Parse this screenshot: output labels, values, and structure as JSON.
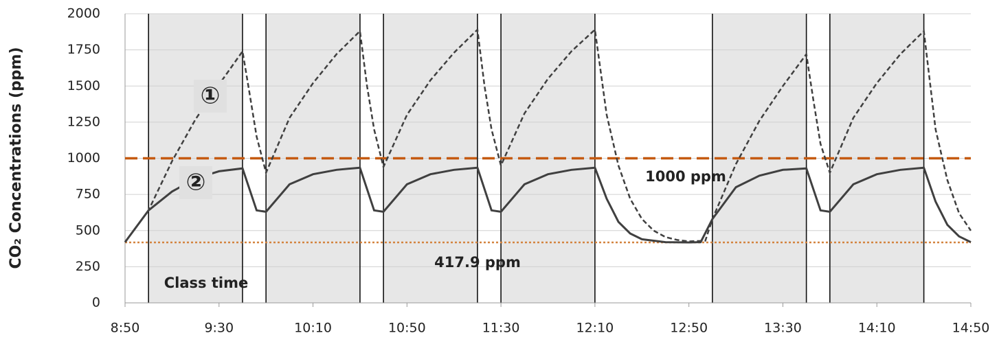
{
  "chart_data": {
    "type": "line",
    "y_label": "CO₂ Concentrations (ppm)",
    "xlim": [
      "8:50",
      "14:50"
    ],
    "xticks": [
      "8:50",
      "9:30",
      "10:10",
      "10:50",
      "11:30",
      "12:10",
      "12:50",
      "13:30",
      "14:10",
      "14:50"
    ],
    "ylim": [
      0,
      2000
    ],
    "yticks": [
      0,
      250,
      500,
      750,
      1000,
      1250,
      1500,
      1750,
      2000
    ],
    "grid": true,
    "class_label": "Class time",
    "class_color": "#e7e7e7",
    "class_periods": [
      [
        "9:00",
        "9:40"
      ],
      [
        "9:50",
        "10:30"
      ],
      [
        "10:40",
        "11:20"
      ],
      [
        "11:30",
        "12:10"
      ],
      [
        "13:00",
        "13:40"
      ],
      [
        "13:50",
        "14:30"
      ]
    ],
    "reference_lines": [
      {
        "value": 1000,
        "label": "1000 ppm",
        "color": "#c55a11",
        "style": "dashed"
      },
      {
        "value": 417.9,
        "label": "417.9 ppm",
        "color": "#d4843f",
        "style": "dotted"
      }
    ],
    "series": [
      {
        "name": "①",
        "color": "#404040",
        "style": "dashed",
        "x": [
          "8:50",
          "9:00",
          "9:10",
          "9:20",
          "9:30",
          "9:40",
          "9:43",
          "9:46",
          "9:50",
          "10:00",
          "10:10",
          "10:20",
          "10:30",
          "10:33",
          "10:36",
          "10:40",
          "10:50",
          "11:00",
          "11:10",
          "11:20",
          "11:23",
          "11:26",
          "11:30",
          "11:40",
          "11:50",
          "12:00",
          "12:10",
          "12:15",
          "12:20",
          "12:25",
          "12:30",
          "12:35",
          "12:40",
          "12:45",
          "12:50",
          "12:57",
          "13:00",
          "13:10",
          "13:20",
          "13:30",
          "13:40",
          "13:43",
          "13:46",
          "13:50",
          "14:00",
          "14:10",
          "14:20",
          "14:30",
          "14:35",
          "14:40",
          "14:45",
          "14:50"
        ],
        "values": [
          420,
          640,
          980,
          1270,
          1510,
          1740,
          1450,
          1150,
          900,
          1280,
          1520,
          1720,
          1880,
          1500,
          1200,
          940,
          1300,
          1540,
          1730,
          1890,
          1500,
          1200,
          950,
          1310,
          1550,
          1740,
          1890,
          1300,
          950,
          720,
          580,
          500,
          455,
          435,
          425,
          430,
          580,
          960,
          1260,
          1500,
          1720,
          1400,
          1100,
          900,
          1280,
          1520,
          1720,
          1880,
          1200,
          850,
          620,
          500
        ]
      },
      {
        "name": "②",
        "color": "#404040",
        "style": "solid",
        "x": [
          "8:50",
          "9:00",
          "9:10",
          "9:20",
          "9:30",
          "9:40",
          "9:46",
          "9:50",
          "10:00",
          "10:10",
          "10:20",
          "10:30",
          "10:36",
          "10:40",
          "10:50",
          "11:00",
          "11:10",
          "11:20",
          "11:26",
          "11:30",
          "11:40",
          "11:50",
          "12:00",
          "12:10",
          "12:15",
          "12:20",
          "12:25",
          "12:30",
          "12:40",
          "12:50",
          "12:55",
          "13:00",
          "13:10",
          "13:20",
          "13:30",
          "13:40",
          "13:46",
          "13:50",
          "14:00",
          "14:10",
          "14:20",
          "14:30",
          "14:35",
          "14:40",
          "14:45",
          "14:50"
        ],
        "values": [
          420,
          640,
          770,
          860,
          910,
          930,
          640,
          630,
          820,
          890,
          920,
          935,
          640,
          630,
          820,
          890,
          920,
          935,
          640,
          630,
          820,
          890,
          920,
          935,
          720,
          560,
          480,
          440,
          420,
          418,
          420,
          580,
          800,
          880,
          920,
          930,
          640,
          630,
          820,
          890,
          920,
          935,
          700,
          540,
          460,
          420
        ]
      }
    ]
  }
}
